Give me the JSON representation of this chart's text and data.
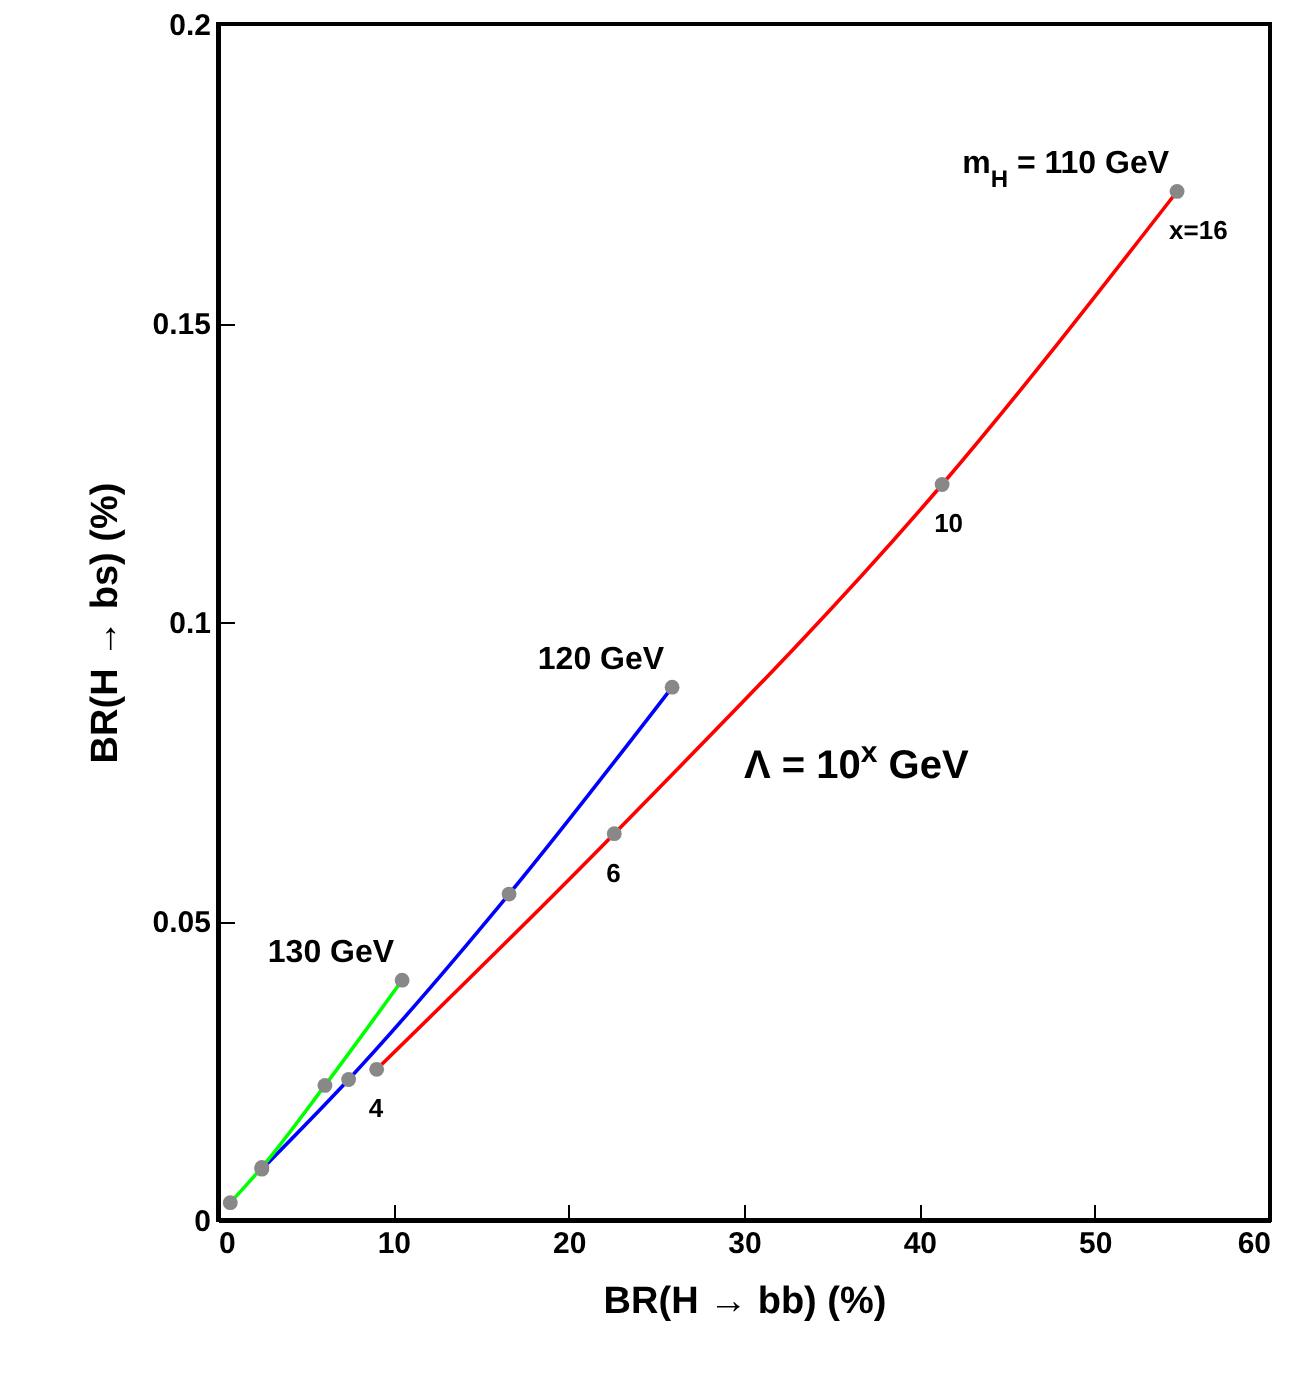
{
  "chart_data": {
    "type": "line",
    "xlabel": "BR(H → bb) (%)",
    "ylabel": "BR(H → bs) (%)",
    "xlim": [
      0,
      60
    ],
    "xticks": [
      0,
      10,
      20,
      30,
      40,
      50,
      60
    ],
    "ylim": [
      0,
      0.2
    ],
    "yticks": [
      0,
      0.05,
      0.1,
      0.15,
      0.2
    ],
    "grid": false,
    "legend": false,
    "marker": "circle",
    "line_style": "solid",
    "series": [
      {
        "name": "m$_{H}$ = 110 GeV",
        "color": "#ff0000",
        "x": [
          9.05,
          22.6,
          41.3,
          54.7
        ],
        "values": [
          0.0252,
          0.0646,
          0.123,
          0.172
        ]
      },
      {
        "name": "120 GeV",
        "color": "#0000ff",
        "x": [
          2.5,
          7.45,
          16.6,
          25.9
        ],
        "values": [
          0.0085,
          0.0235,
          0.0545,
          0.0891
        ]
      },
      {
        "name": "130 GeV",
        "color": "#00ff00",
        "x": [
          0.7,
          2.5,
          6.1,
          10.5
        ],
        "values": [
          0.0029,
          0.0088,
          0.0225,
          0.0401
        ]
      }
    ],
    "annotations": [
      {
        "text": "4",
        "x": 9.05,
        "y": 0.0252
      },
      {
        "text": "6",
        "x": 22.6,
        "y": 0.0646
      },
      {
        "text": "10",
        "x": 41.3,
        "y": 0.123
      },
      {
        "text": "x=16",
        "x": 54.7,
        "y": 0.172
      },
      "Λ = 10$^{x}$ GeV"
    ]
  }
}
